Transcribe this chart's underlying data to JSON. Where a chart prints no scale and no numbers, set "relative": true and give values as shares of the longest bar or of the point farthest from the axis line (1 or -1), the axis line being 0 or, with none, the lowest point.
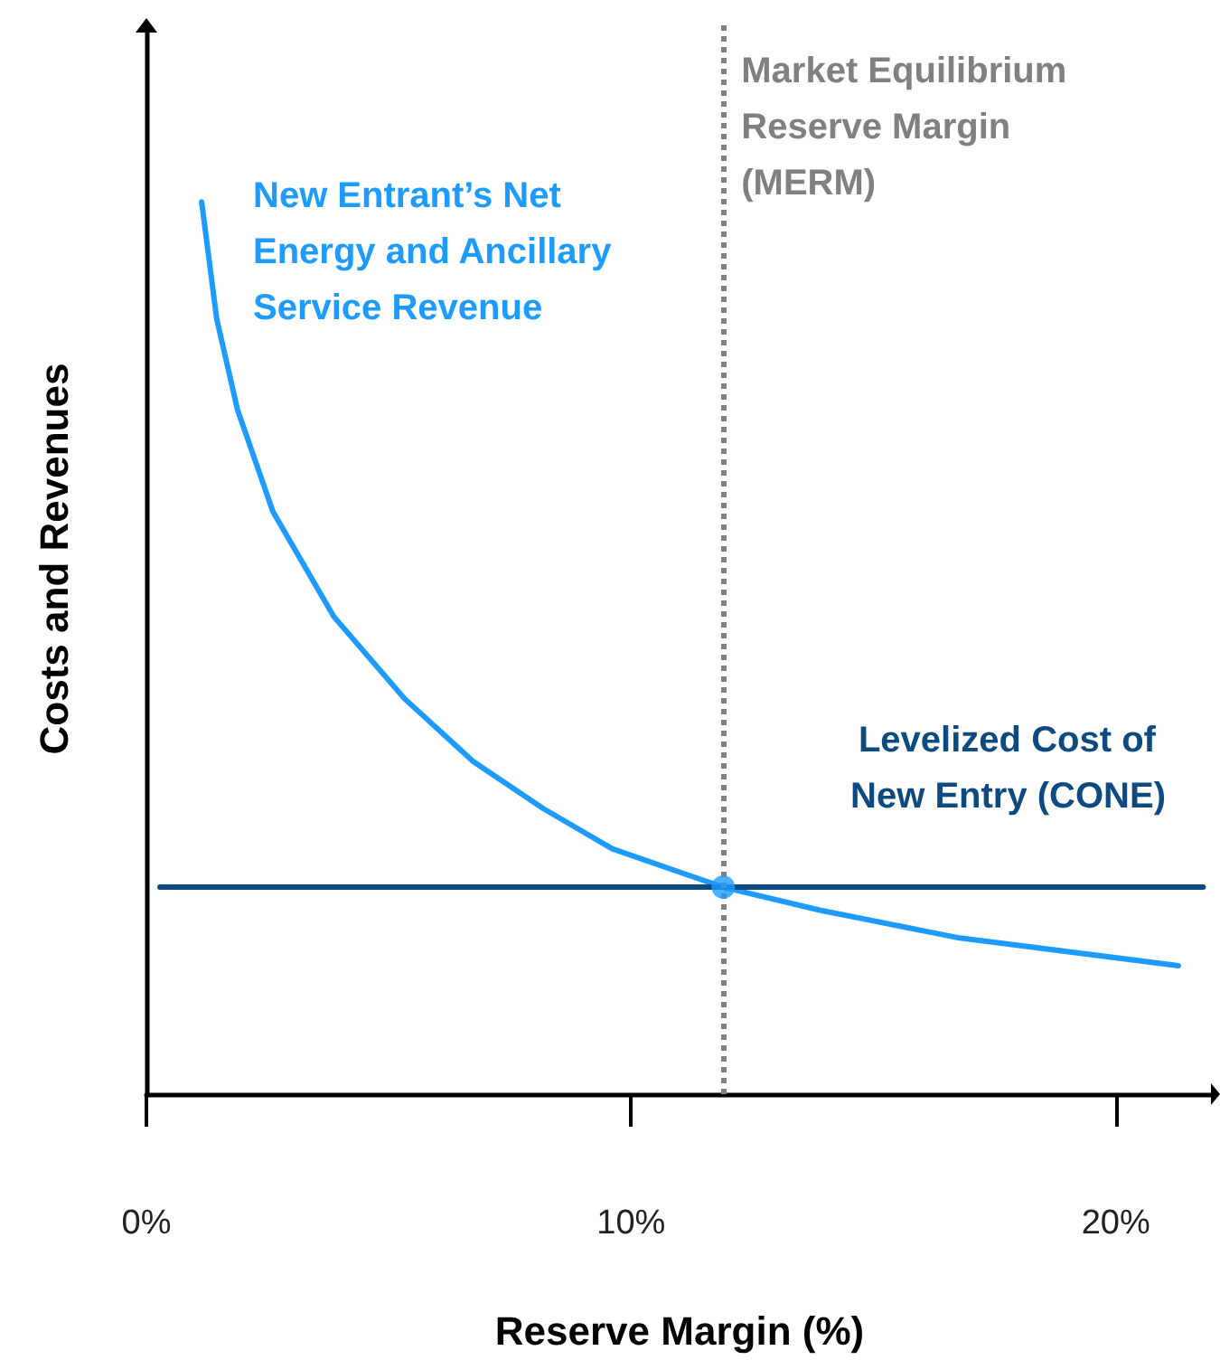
{
  "chart_data": {
    "type": "line",
    "relative": true,
    "xlabel": "Reserve Margin (%)",
    "ylabel": "Costs and Revenues",
    "xlim": [
      0,
      22
    ],
    "xticks": [
      {
        "value": 0,
        "label": "0%"
      },
      {
        "value": 10,
        "label": "10%"
      },
      {
        "value": 20,
        "label": "20%"
      }
    ],
    "grid": false,
    "legend": false,
    "marker": "none",
    "line_style": "solid",
    "series": [
      {
        "name": "New Entrant’s Net Energy and Ancillary Service Revenue",
        "color": "#1e9bff",
        "x": [
          1.14,
          1.45,
          1.88,
          2.61,
          3.87,
          5.33,
          6.74,
          8.19,
          9.61,
          11.9,
          13.91,
          16.78,
          21.29
        ],
        "values": [
          1.0,
          0.869,
          0.767,
          0.653,
          0.535,
          0.443,
          0.373,
          0.32,
          0.275,
          0.232,
          0.206,
          0.175,
          0.144
        ]
      },
      {
        "name": "Levelized Cost of New Entry (CONE)",
        "color": "#0d4a80",
        "x": [
          0.28,
          21.8
        ],
        "values": [
          0.232,
          0.232
        ]
      },
      {
        "type": "scatter",
        "marker": "circle",
        "color": "#1e9bff",
        "x": [
          11.9
        ],
        "values": [
          0.232
        ]
      }
    ],
    "ref_lines": [
      {
        "axis": "x",
        "value": 11.9,
        "label": "Market Equilibrium Reserve Margin (MERM)",
        "color": "#808080",
        "line_style": "dotted"
      }
    ]
  }
}
